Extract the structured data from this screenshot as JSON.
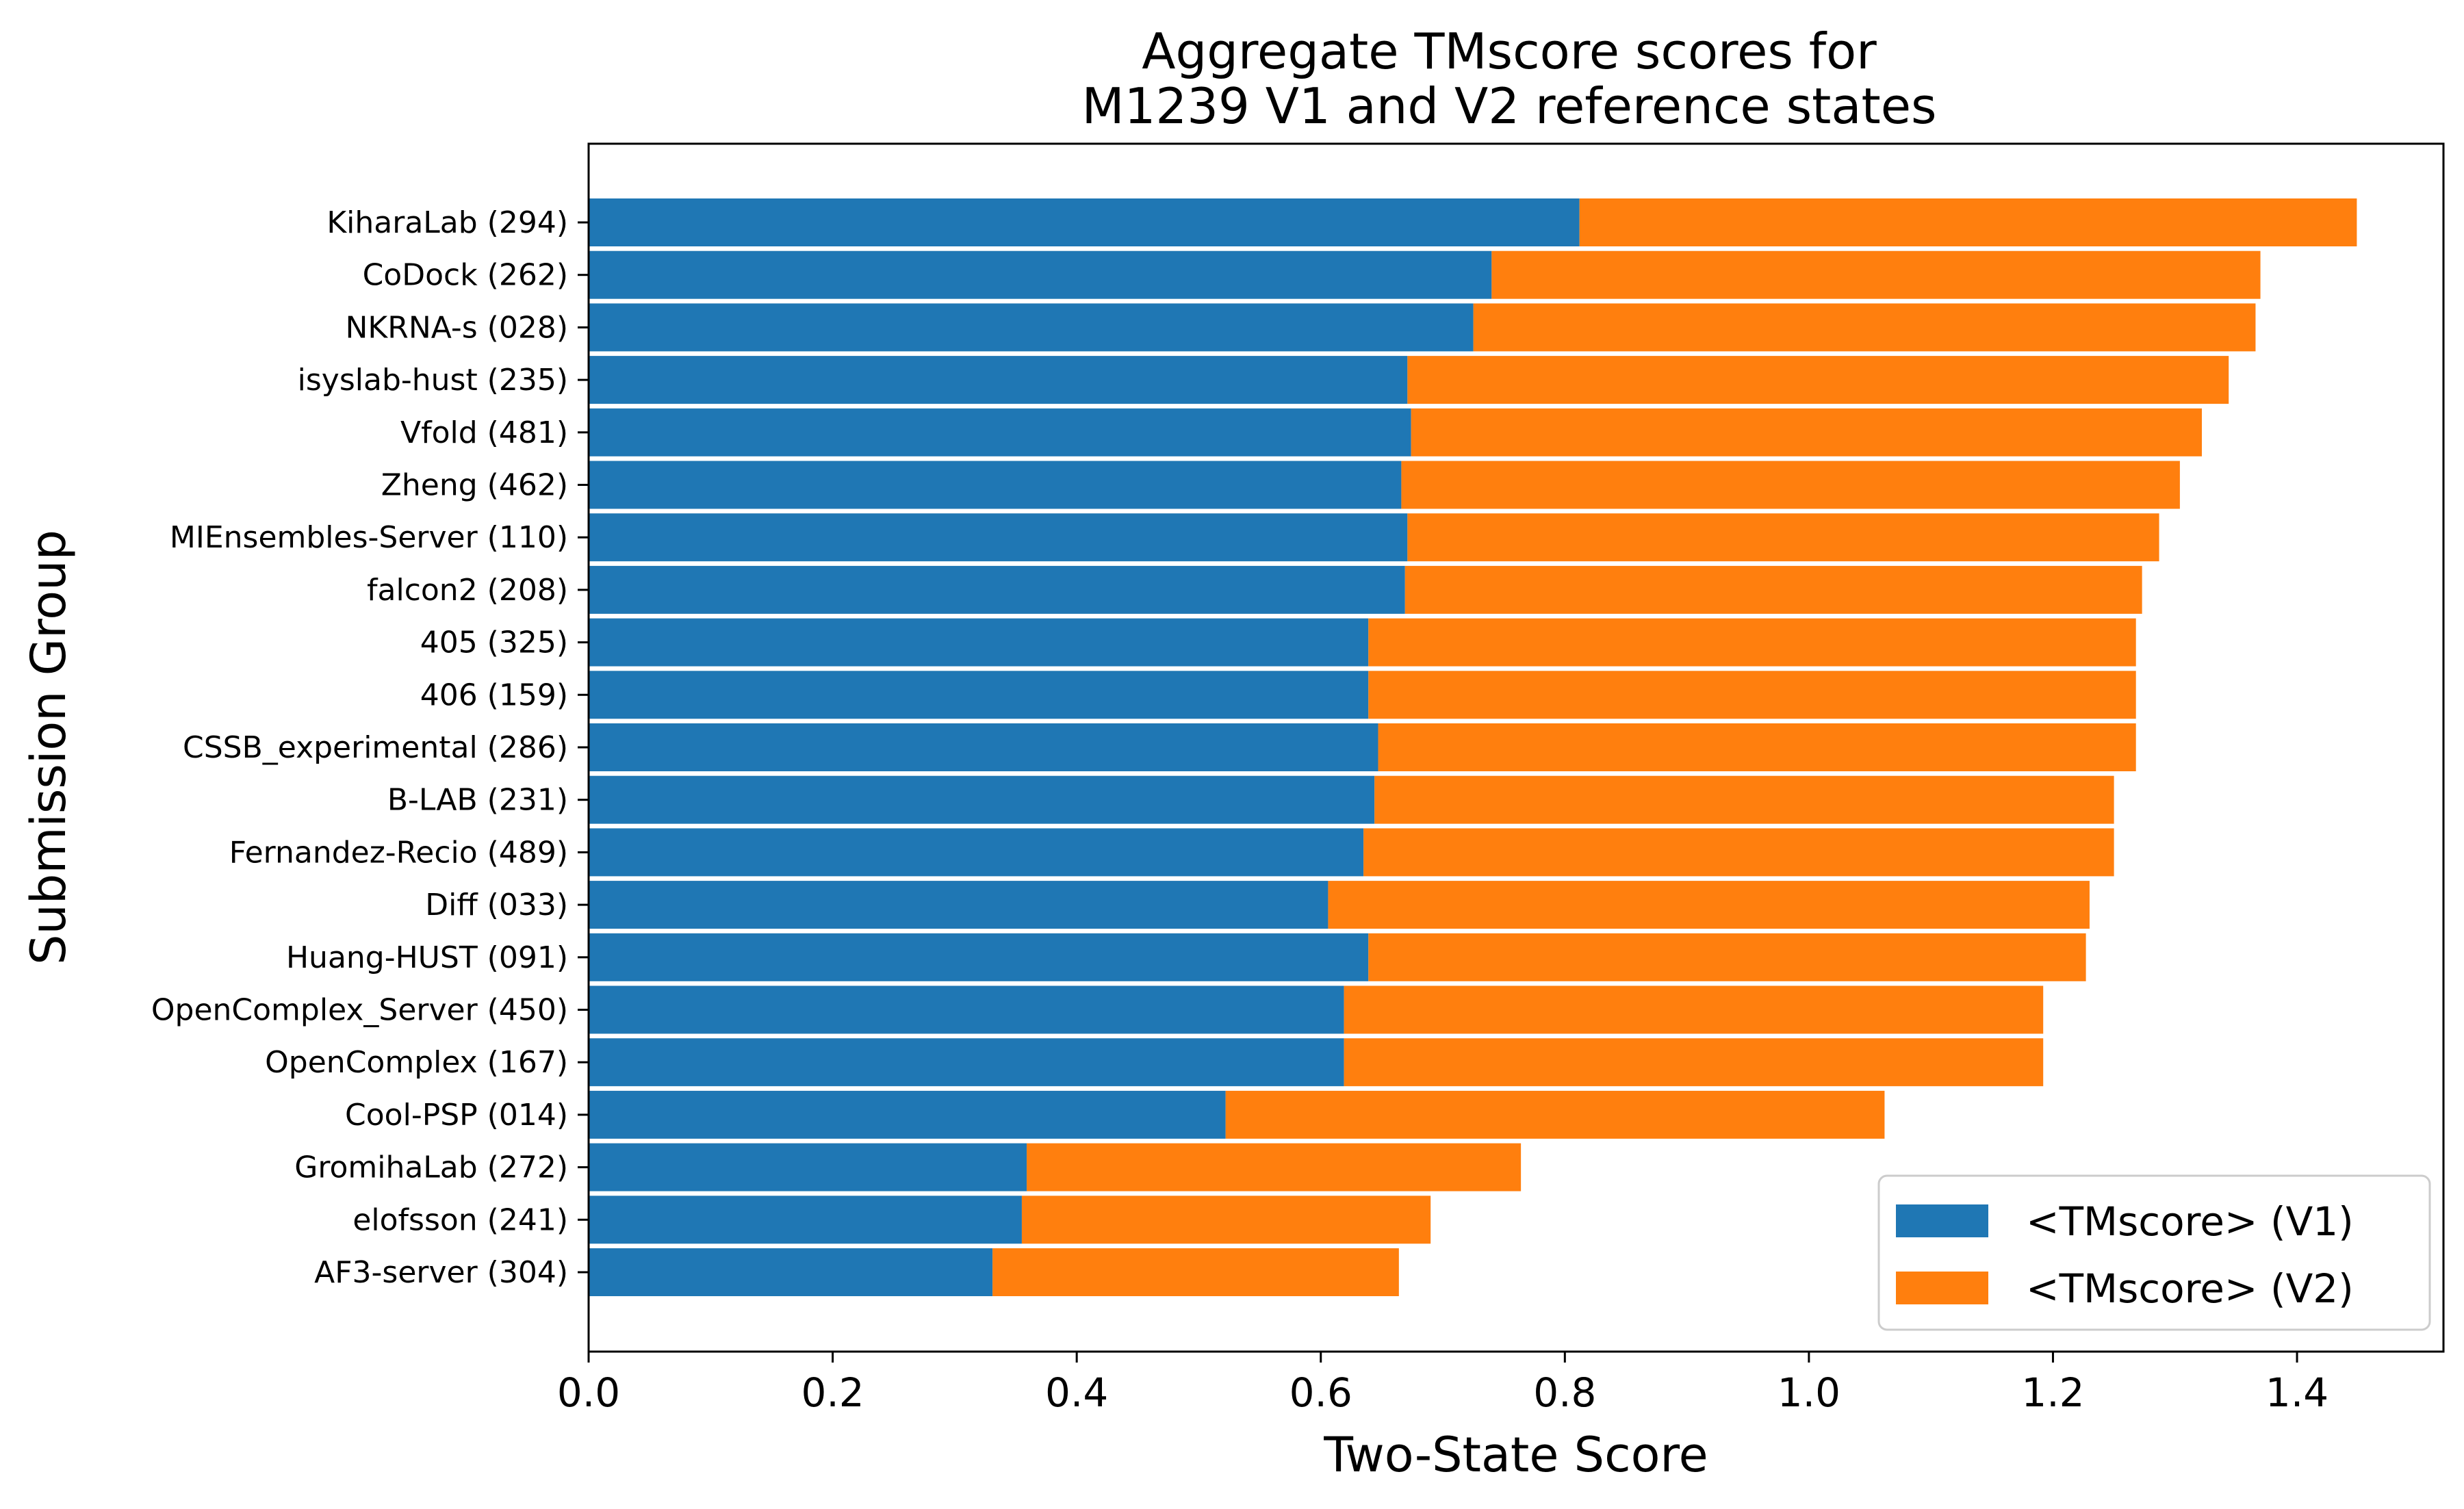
{
  "chart_data": {
    "type": "bar",
    "orientation": "horizontal",
    "stacked": true,
    "title_lines": [
      "Aggregate TMscore scores for",
      "M1239 V1 and V2 reference states"
    ],
    "xlabel": "Two-State Score",
    "ylabel": "Submission Group",
    "xlim": [
      0.0,
      1.52
    ],
    "xticks": [
      0.0,
      0.2,
      0.4,
      0.6,
      0.8,
      1.0,
      1.2,
      1.4
    ],
    "xtick_labels": [
      "0.0",
      "0.2",
      "0.4",
      "0.6",
      "0.8",
      "1.0",
      "1.2",
      "1.4"
    ],
    "grid": false,
    "legend_position": "lower-right",
    "categories": [
      "KiharaLab (294)",
      "CoDock (262)",
      "NKRNA-s (028)",
      "isyslab-hust (235)",
      "Vfold (481)",
      "Zheng (462)",
      "MIEnsembles-Server (110)",
      "falcon2 (208)",
      "405 (325)",
      "406 (159)",
      "CSSB_experimental (286)",
      "B-LAB (231)",
      "Fernandez-Recio (489)",
      "Diff (033)",
      "Huang-HUST (091)",
      "OpenComplex_Server (450)",
      "OpenComplex (167)",
      "Cool-PSP (014)",
      "GromihaLab (272)",
      "elofsson (241)",
      "AF3-server (304)"
    ],
    "series": [
      {
        "name": "<TMscore> (V1)",
        "color": "#1f77b4",
        "values": [
          0.812,
          0.74,
          0.725,
          0.671,
          0.674,
          0.666,
          0.671,
          0.669,
          0.639,
          0.639,
          0.647,
          0.644,
          0.635,
          0.606,
          0.639,
          0.619,
          0.619,
          0.522,
          0.359,
          0.355,
          0.331
        ]
      },
      {
        "name": "<TMscore> (V2)",
        "color": "#ff7f0e",
        "values": [
          0.637,
          0.63,
          0.641,
          0.673,
          0.648,
          0.638,
          0.616,
          0.604,
          0.629,
          0.629,
          0.621,
          0.606,
          0.615,
          0.624,
          0.588,
          0.573,
          0.573,
          0.54,
          0.405,
          0.335,
          0.333
        ]
      }
    ]
  }
}
